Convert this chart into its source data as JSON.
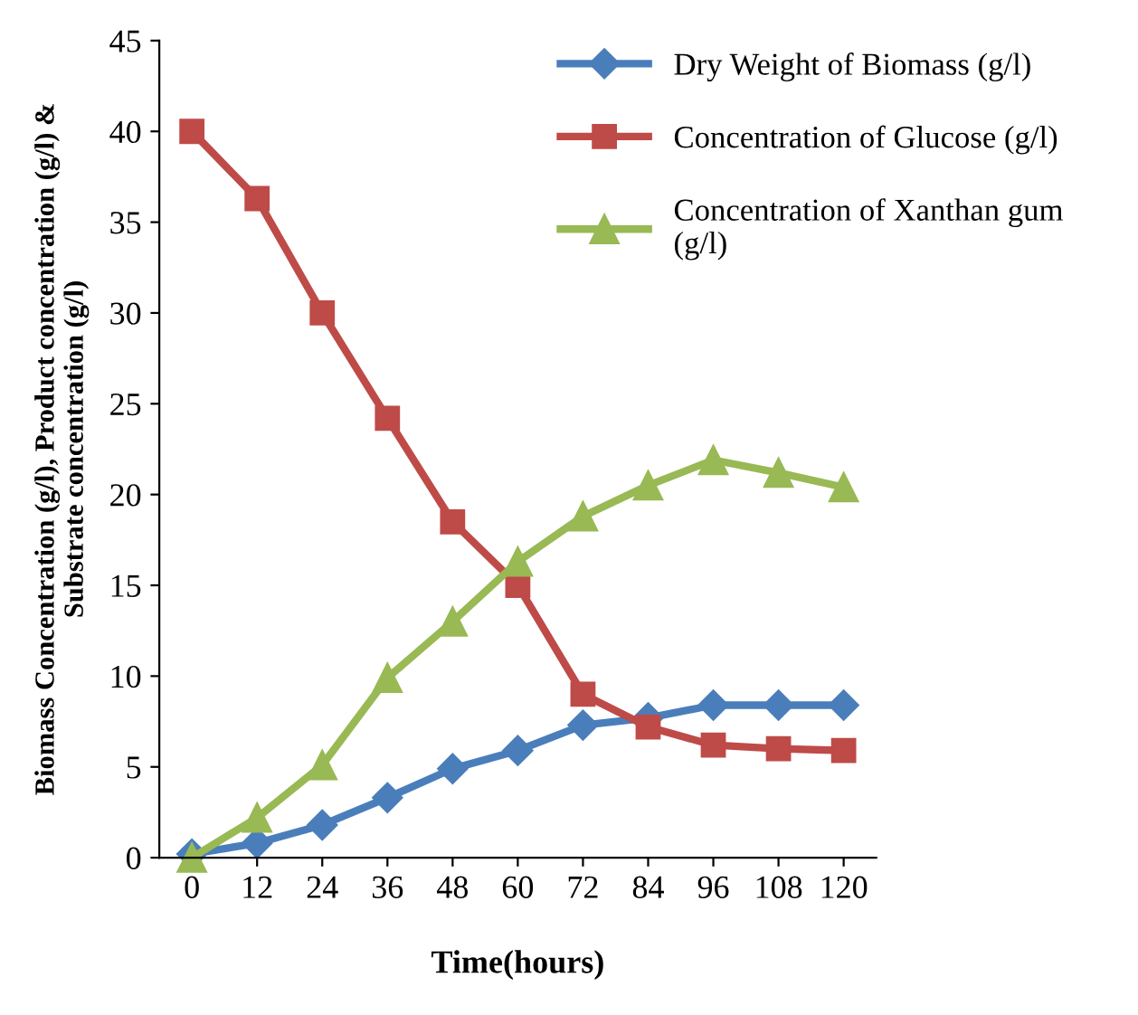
{
  "chart_data": {
    "type": "line",
    "xlabel": "Time(hours)",
    "ylabel": "Biomass Concentration (g/l), Product concentration (g/l) &\nSubstrate concentration (g/l)",
    "categories": [
      "0",
      "12",
      "24",
      "36",
      "48",
      "60",
      "72",
      "84",
      "96",
      "108",
      "120"
    ],
    "series": [
      {
        "name": "Dry Weight of Biomass (g/l)",
        "color": "#4a7ebb",
        "marker": "diamond",
        "values": [
          0.2,
          0.8,
          1.8,
          3.3,
          4.9,
          5.9,
          7.3,
          7.7,
          8.4,
          8.4,
          8.4
        ]
      },
      {
        "name": "Concentration of Glucose (g/l)",
        "color": "#be4b48",
        "marker": "square",
        "values": [
          40,
          36.3,
          30,
          24.2,
          18.5,
          15,
          9,
          7.2,
          6.2,
          6.0,
          5.9
        ]
      },
      {
        "name": "Concentration of Xanthan gum\n(g/l)",
        "color": "#98b954",
        "marker": "triangle",
        "values": [
          0,
          2.2,
          5.1,
          9.9,
          13,
          16.3,
          18.8,
          20.5,
          21.9,
          21.2,
          20.4
        ]
      }
    ],
    "ylim": [
      0,
      45
    ],
    "yticks": [
      0,
      5,
      10,
      15,
      20,
      25,
      30,
      35,
      40,
      45
    ],
    "grid": false,
    "legend": "top right",
    "line_style": "solid"
  }
}
